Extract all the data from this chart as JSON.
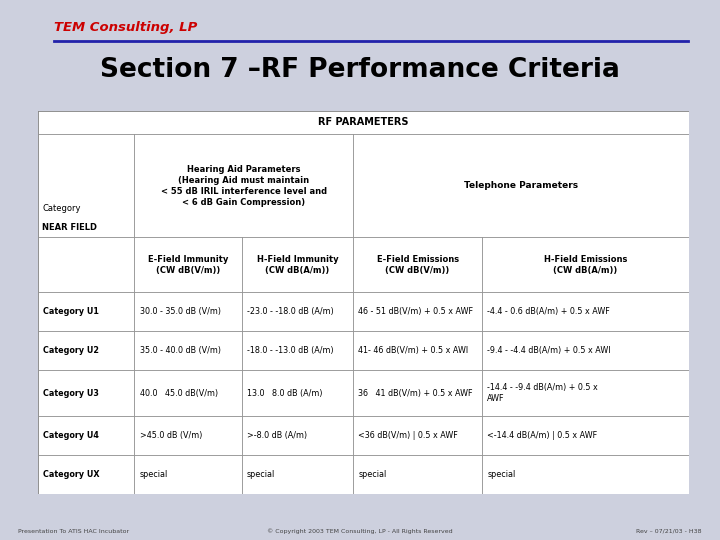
{
  "bg_color": "#cdd0de",
  "title": "Section 7 –RF Performance Criteria",
  "title_color": "#000000",
  "logo_text": "TEM Consulting, LP",
  "logo_color": "#cc0000",
  "footer_left": "Presentation To ATIS HAC Incubator",
  "footer_center": "© Copyright 2003 TEM Consulting, LP - All Rights Reserved",
  "footer_right": "Rev – 07/21/03 - H38",
  "table_header_main": "RF PARAMETERS",
  "hearing_aid_header": "Hearing Aid Parameters\n(Hearing Aid must maintain\n< 55 dB IRIL interference level and\n< 6 dB Gain Compression)",
  "telephone_header": "Telephone Parameters",
  "col_headers": [
    "",
    "E-Field Immunity\n(CW dB(V/m))",
    "H-Field Immunity\n(CW dB(A/m))",
    "E-Field Emissions\n(CW dB(V/m))",
    "H-Field Emissions\n(CW dB(A/m))"
  ],
  "category_label": "Category",
  "near_field_label": "NEAR FIELD",
  "rows": [
    [
      "Category U1",
      "30.0 - 35.0 dB (V/m)",
      "-23.0 - -18.0 dB (A/m)",
      "46 - 51 dB(V/m) + 0.5 x AWF",
      "-4.4 - 0.6 dB(A/m) + 0.5 x AWF"
    ],
    [
      "Category U2",
      "35.0 - 40.0 dB (V/m)",
      "-18.0 - -13.0 dB (A/m)",
      "41- 46 dB(V/m) + 0.5 x AWI",
      "-9.4 - -4.4 dB(A/m) + 0.5 x AWI"
    ],
    [
      "Category U3",
      "40.0   45.0 dB(V/m)",
      "13.0   8.0 dB (A/m)",
      "36   41 dB(V/m) + 0.5 x AWF",
      "-14.4 - -9.4 dB(A/m) + 0.5 x\nAWF"
    ],
    [
      "Category U4",
      ">45.0 dB (V/m)",
      ">-8.0 dB (A/m)",
      "<36 dB(V/m) | 0.5 x AWF",
      "<-14.4 dB(A/m) | 0.5 x AWF"
    ],
    [
      "Category UX",
      "special",
      "special",
      "special",
      "special"
    ]
  ],
  "line_color": "#2222aa",
  "table_border": "#888888",
  "cell_border": "#aaaaaa"
}
